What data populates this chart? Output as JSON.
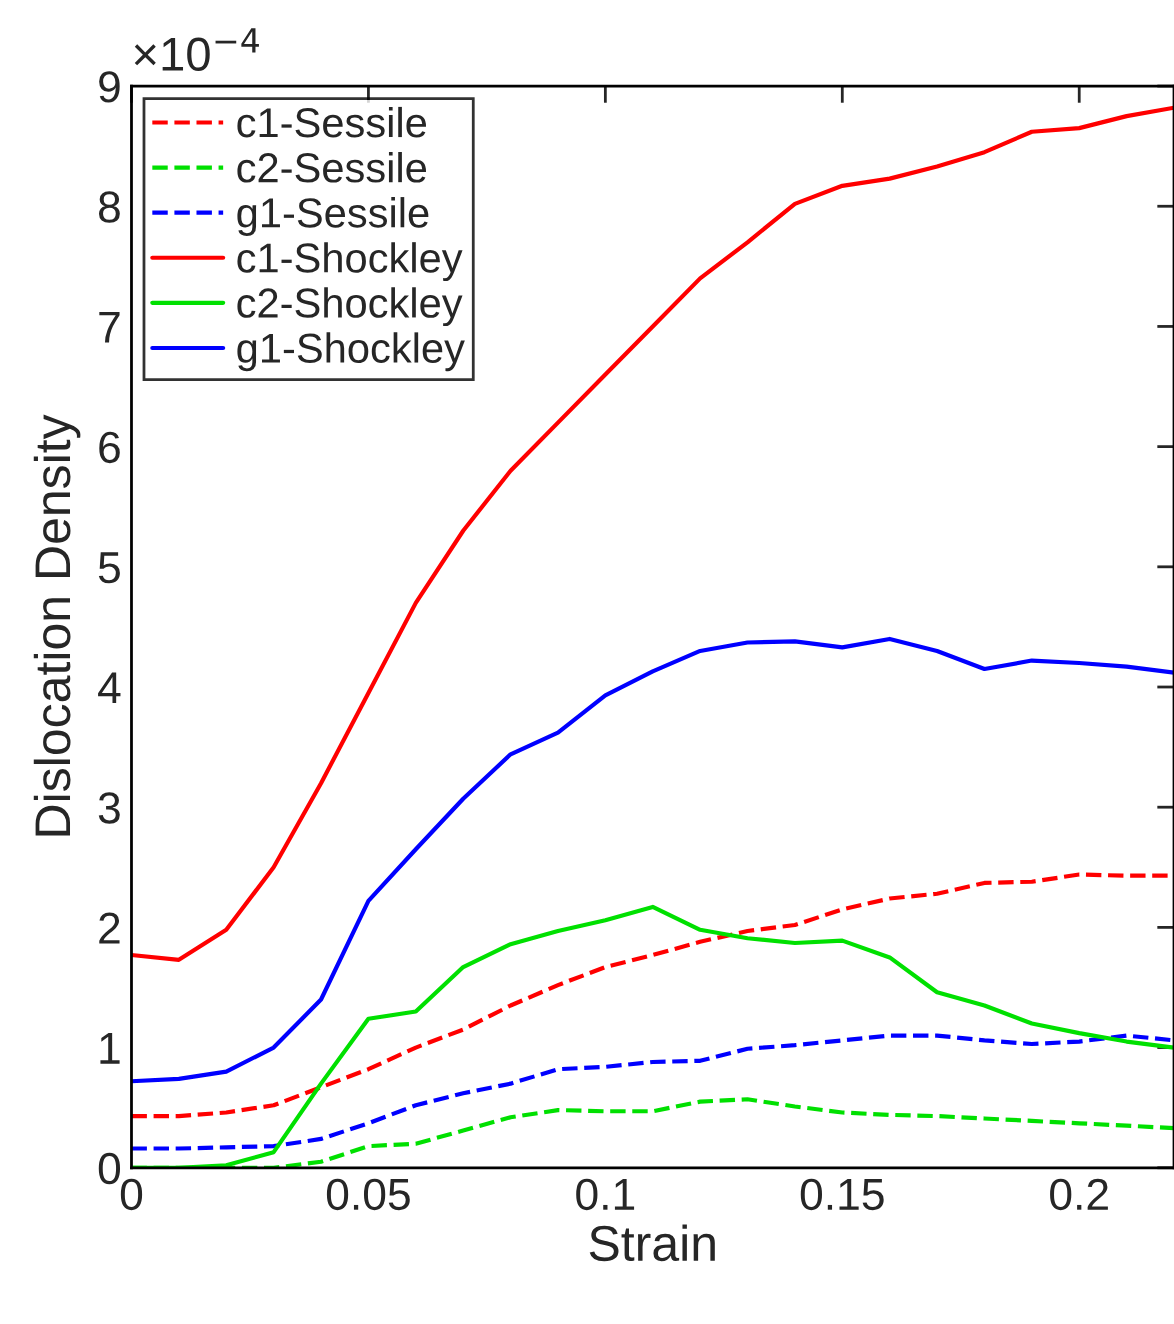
{
  "chart_data": {
    "type": "line",
    "xlabel": "Strain",
    "ylabel": "Dislocation Density",
    "annotations": [
      "×10$^{−4}$"
    ],
    "x": [
      0,
      0.01,
      0.02,
      0.03,
      0.04,
      0.05,
      0.06,
      0.07,
      0.08,
      0.09,
      0.1,
      0.11,
      0.12,
      0.13,
      0.14,
      0.15,
      0.16,
      0.17,
      0.18,
      0.19,
      0.2,
      0.21,
      0.22
    ],
    "series": [
      {
        "name": "c1-Sessile",
        "color": "#ff0000",
        "line_style": "dashed",
        "values": [
          0.43,
          0.43,
          0.46,
          0.52,
          0.67,
          0.82,
          1.0,
          1.15,
          1.35,
          1.52,
          1.67,
          1.77,
          1.88,
          1.97,
          2.02,
          2.15,
          2.24,
          2.28,
          2.37,
          2.38,
          2.44,
          2.43,
          2.43
        ]
      },
      {
        "name": "c2-Sessile",
        "color": "#00e000",
        "line_style": "dashed",
        "values": [
          0,
          0,
          0,
          0,
          0.05,
          0.18,
          0.2,
          0.31,
          0.42,
          0.48,
          0.47,
          0.47,
          0.55,
          0.57,
          0.51,
          0.46,
          0.44,
          0.43,
          0.41,
          0.39,
          0.37,
          0.35,
          0.33
        ]
      },
      {
        "name": "g1-Sessile",
        "color": "#0000ff",
        "line_style": "dashed",
        "values": [
          0.16,
          0.16,
          0.17,
          0.18,
          0.24,
          0.37,
          0.52,
          0.62,
          0.7,
          0.82,
          0.84,
          0.88,
          0.89,
          0.99,
          1.02,
          1.06,
          1.1,
          1.1,
          1.06,
          1.03,
          1.05,
          1.1,
          1.06
        ]
      },
      {
        "name": "c1-Shockley",
        "color": "#ff0000",
        "line_style": "solid",
        "values": [
          1.77,
          1.73,
          1.98,
          2.5,
          3.2,
          3.95,
          4.7,
          5.3,
          5.8,
          6.2,
          6.6,
          7.0,
          7.4,
          7.7,
          8.02,
          8.17,
          8.23,
          8.33,
          8.45,
          8.62,
          8.65,
          8.75,
          8.82
        ]
      },
      {
        "name": "c2-Shockley",
        "color": "#00e000",
        "line_style": "solid",
        "values": [
          0.0,
          0.0,
          0.02,
          0.13,
          0.7,
          1.24,
          1.3,
          1.67,
          1.86,
          1.97,
          2.06,
          2.17,
          1.98,
          1.91,
          1.87,
          1.89,
          1.75,
          1.46,
          1.35,
          1.2,
          1.12,
          1.05,
          1.0
        ]
      },
      {
        "name": "g1-Shockley",
        "color": "#0000ff",
        "line_style": "solid",
        "values": [
          0.72,
          0.74,
          0.8,
          1.0,
          1.4,
          2.22,
          2.65,
          3.07,
          3.44,
          3.62,
          3.93,
          4.13,
          4.3,
          4.37,
          4.38,
          4.33,
          4.4,
          4.3,
          4.15,
          4.22,
          4.2,
          4.17,
          4.12
        ]
      }
    ],
    "xlim": [
      0,
      0.22
    ],
    "xticks": [
      0,
      0.05,
      0.1,
      0.15,
      0.2
    ],
    "ylim": [
      0,
      9
    ],
    "yticks": [
      0,
      1,
      2,
      3,
      4,
      5,
      6,
      7,
      8,
      9
    ],
    "grid": false,
    "legend": "top left",
    "marker": "none"
  }
}
